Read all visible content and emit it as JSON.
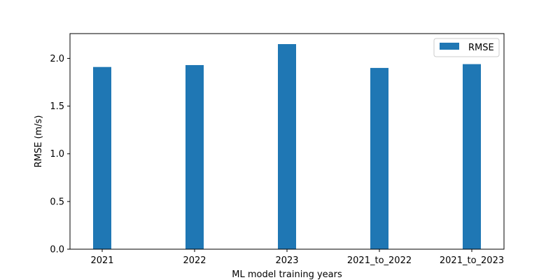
{
  "chart_data": {
    "type": "bar",
    "categories": [
      "2021",
      "2022",
      "2023",
      "2021_to_2022",
      "2021_to_2023"
    ],
    "series": [
      {
        "name": "RMSE",
        "values": [
          1.91,
          1.93,
          2.15,
          1.9,
          1.94
        ],
        "color": "#1f77b4"
      }
    ],
    "title": "",
    "xlabel": "ML model training years",
    "ylabel": "RMSE (m/s)",
    "ylim": [
      0,
      2.26
    ],
    "yticks": [
      0.0,
      0.5,
      1.0,
      1.5,
      2.0
    ],
    "ytick_labels": [
      "0.0",
      "0.5",
      "1.0",
      "1.5",
      "2.0"
    ],
    "grid": false,
    "legend": {
      "position": "top-right",
      "entries": [
        "RMSE"
      ]
    }
  }
}
